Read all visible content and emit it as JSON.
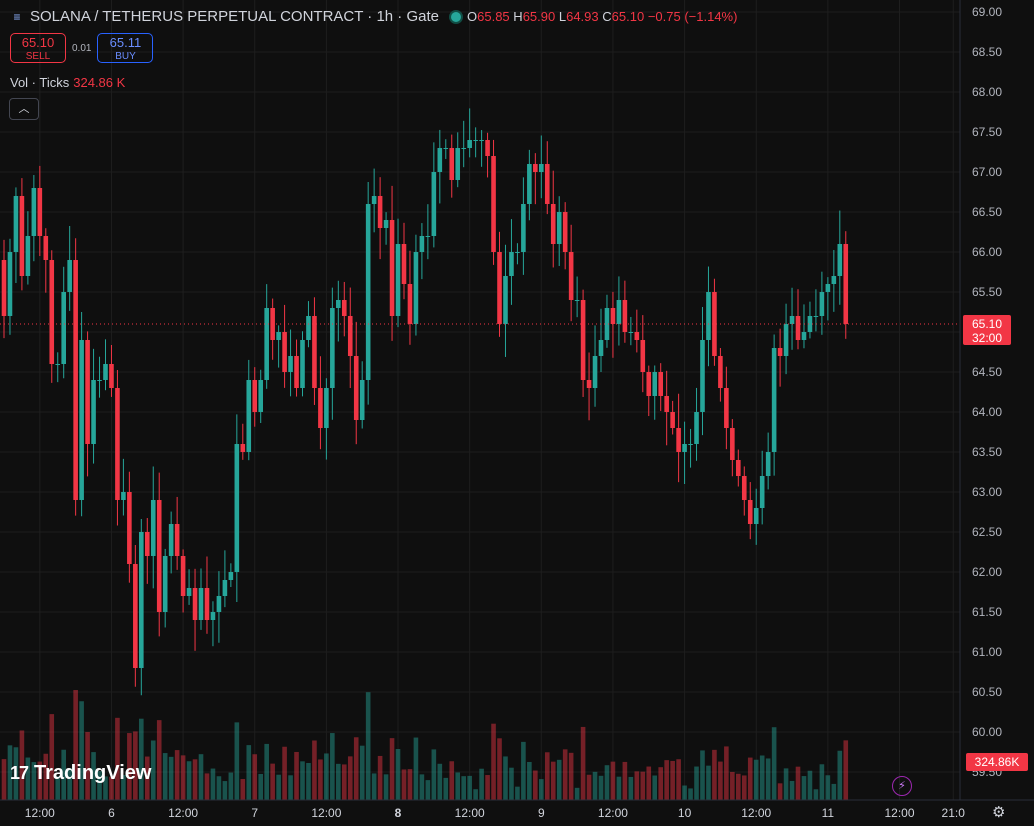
{
  "header": {
    "symbol_icon": "list-icon",
    "title": "SOLANA / TETHERUS PERPETUAL CONTRACT · 1h · Gate",
    "status_color": "#26a69a",
    "open_label": "O",
    "open": "65.85",
    "high_label": "H",
    "high": "65.90",
    "low_label": "L",
    "low": "64.93",
    "close_label": "C",
    "close": "65.10",
    "change": "−0.75 (−1.14%)"
  },
  "trade": {
    "sell_price": "65.10",
    "sell_label": "SELL",
    "spread": "0.01",
    "buy_price": "65.11",
    "buy_label": "BUY"
  },
  "volume_legend": {
    "label": "Vol · Ticks",
    "value": "324.86 K"
  },
  "collapse_icon": "chevron-up-icon",
  "branding": {
    "name": "TradingView",
    "mark": "17"
  },
  "icons": {
    "alert": "lightning-icon",
    "settings": "gear-icon"
  },
  "colors": {
    "up": "#26a69a",
    "down": "#f23645",
    "background": "#0f0f0f",
    "grid": "#1e1e1e"
  },
  "price_badge": {
    "price": "65.10",
    "countdown": "32:00"
  },
  "volume_badge": "324.86K",
  "chart_data": {
    "type": "candlestick",
    "title": "SOLANA / TETHERUS PERPETUAL CONTRACT · 1h · Gate",
    "interval": "1h",
    "y_ticks": [
      "69.00",
      "68.50",
      "68.00",
      "67.50",
      "67.00",
      "66.50",
      "66.00",
      "65.50",
      "65.00",
      "64.50",
      "64.00",
      "63.50",
      "63.00",
      "62.50",
      "62.00",
      "61.50",
      "61.00",
      "60.50",
      "60.00",
      "59.50"
    ],
    "ylim": [
      59.5,
      69.0
    ],
    "x_ticks": [
      {
        "label": "12:00",
        "i": 6,
        "bold": false
      },
      {
        "label": "6",
        "i": 18,
        "bold": false
      },
      {
        "label": "12:00",
        "i": 30,
        "bold": false
      },
      {
        "label": "7",
        "i": 42,
        "bold": false
      },
      {
        "label": "12:00",
        "i": 54,
        "bold": false
      },
      {
        "label": "8",
        "i": 66,
        "bold": true
      },
      {
        "label": "12:00",
        "i": 78,
        "bold": false
      },
      {
        "label": "9",
        "i": 90,
        "bold": false
      },
      {
        "label": "12:00",
        "i": 102,
        "bold": false
      },
      {
        "label": "10",
        "i": 114,
        "bold": false
      },
      {
        "label": "12:00",
        "i": 126,
        "bold": false
      },
      {
        "label": "11",
        "i": 138,
        "bold": false
      },
      {
        "label": "12:00",
        "i": 150,
        "bold": false
      },
      {
        "label": "21:0",
        "i": 159,
        "bold": false
      }
    ],
    "last_price": 65.1,
    "grid": true,
    "closes": [
      65.2,
      66.0,
      66.7,
      65.7,
      66.2,
      66.8,
      66.2,
      65.9,
      64.6,
      64.6,
      65.5,
      65.9,
      62.9,
      64.9,
      63.6,
      64.4,
      64.4,
      64.6,
      64.3,
      62.9,
      63.0,
      62.1,
      60.8,
      62.5,
      62.2,
      62.9,
      61.5,
      62.2,
      62.6,
      62.2,
      61.7,
      61.8,
      61.4,
      61.8,
      61.4,
      61.5,
      61.7,
      61.9,
      62.0,
      63.6,
      63.5,
      64.4,
      64.0,
      64.4,
      65.3,
      64.9,
      65.0,
      64.5,
      64.7,
      64.3,
      64.9,
      65.2,
      64.3,
      63.8,
      64.3,
      65.3,
      65.4,
      65.2,
      64.7,
      63.9,
      64.4,
      66.6,
      66.7,
      66.3,
      66.4,
      65.2,
      66.1,
      65.6,
      65.1,
      66.0,
      66.2,
      66.2,
      67.0,
      67.3,
      67.3,
      66.9,
      67.3,
      67.3,
      67.4,
      67.4,
      67.4,
      67.2,
      66.0,
      65.1,
      65.7,
      66.0,
      66.0,
      66.6,
      67.1,
      67.0,
      67.1,
      66.6,
      66.1,
      66.5,
      66.0,
      65.4,
      65.4,
      64.4,
      64.3,
      64.7,
      64.9,
      65.3,
      65.1,
      65.4,
      65.0,
      65.0,
      64.9,
      64.5,
      64.2,
      64.5,
      64.2,
      64.0,
      63.8,
      63.5,
      63.6,
      63.6,
      64.0,
      64.9,
      65.5,
      64.7,
      64.3,
      63.8,
      63.4,
      63.2,
      62.9,
      62.6,
      62.8,
      63.2,
      63.5,
      64.8,
      64.7,
      65.1,
      65.2,
      64.9,
      65.0,
      65.2,
      65.2,
      65.5,
      65.6,
      65.7,
      66.1,
      65.1
    ],
    "volume_hint": "relative heights"
  }
}
